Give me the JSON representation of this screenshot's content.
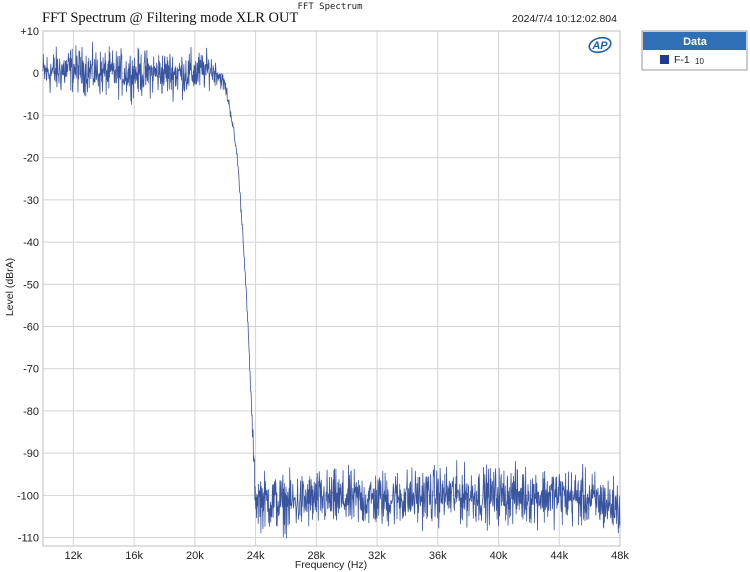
{
  "header": {
    "top_title": "FFT Spectrum",
    "main_title": "FFT Spectrum @ Filtering mode XLR OUT",
    "timestamp": "2024/7/4 10:12:02.804"
  },
  "logo": {
    "text": "AP"
  },
  "legend": {
    "header": "Data",
    "items": [
      {
        "label": "F-1",
        "sub": "10",
        "color": "#1f3a93"
      }
    ]
  },
  "colors": {
    "trace": "#3a55a0",
    "grid": "#d4d4d4",
    "plot_border": "#bfbfbf",
    "legend_header_bg": "#2e6fb6",
    "logo": "#1f5fa8"
  },
  "chart_data": {
    "type": "line",
    "title": "FFT Spectrum @ Filtering mode XLR OUT",
    "xlabel": "Frequency (Hz)",
    "ylabel": "Level (dBrA)",
    "xlim": [
      10000,
      48000
    ],
    "ylim": [
      -112,
      10
    ],
    "x_ticks": [
      12000,
      16000,
      20000,
      24000,
      28000,
      32000,
      36000,
      40000,
      44000,
      48000
    ],
    "x_tick_labels": [
      "12k",
      "16k",
      "20k",
      "24k",
      "28k",
      "32k",
      "36k",
      "40k",
      "44k",
      "48k"
    ],
    "y_ticks": [
      10,
      0,
      -10,
      -20,
      -30,
      -40,
      -50,
      -60,
      -70,
      -80,
      -90,
      -100,
      -110
    ],
    "y_tick_labels": [
      "+10",
      "0",
      "-10",
      "-20",
      "-30",
      "-40",
      "-50",
      "-60",
      "-70",
      "-80",
      "-90",
      "-100",
      "-110"
    ],
    "grid": true,
    "legend_position": "right",
    "series": [
      {
        "name": "F-1",
        "color": "#3a55a0",
        "x": [
          10000,
          12000,
          14000,
          16000,
          18000,
          20000,
          21000,
          21500,
          22000,
          22400,
          22800,
          23200,
          23500,
          23800,
          24000,
          24200,
          26000,
          28000,
          32000,
          36000,
          40000,
          44000,
          46000,
          48000
        ],
        "y": [
          0,
          1,
          0,
          0,
          0,
          0,
          1,
          0,
          -3,
          -10,
          -20,
          -40,
          -60,
          -85,
          -101,
          -101,
          -102,
          -101,
          -101,
          -100,
          -100,
          -100,
          -101,
          -103
        ],
        "noise_amplitude": [
          4,
          4,
          4,
          4,
          4,
          4,
          3,
          2,
          1.5,
          1,
          1,
          1,
          1,
          2,
          4,
          5,
          5,
          5,
          5,
          5,
          5,
          5,
          5,
          5
        ]
      }
    ]
  }
}
